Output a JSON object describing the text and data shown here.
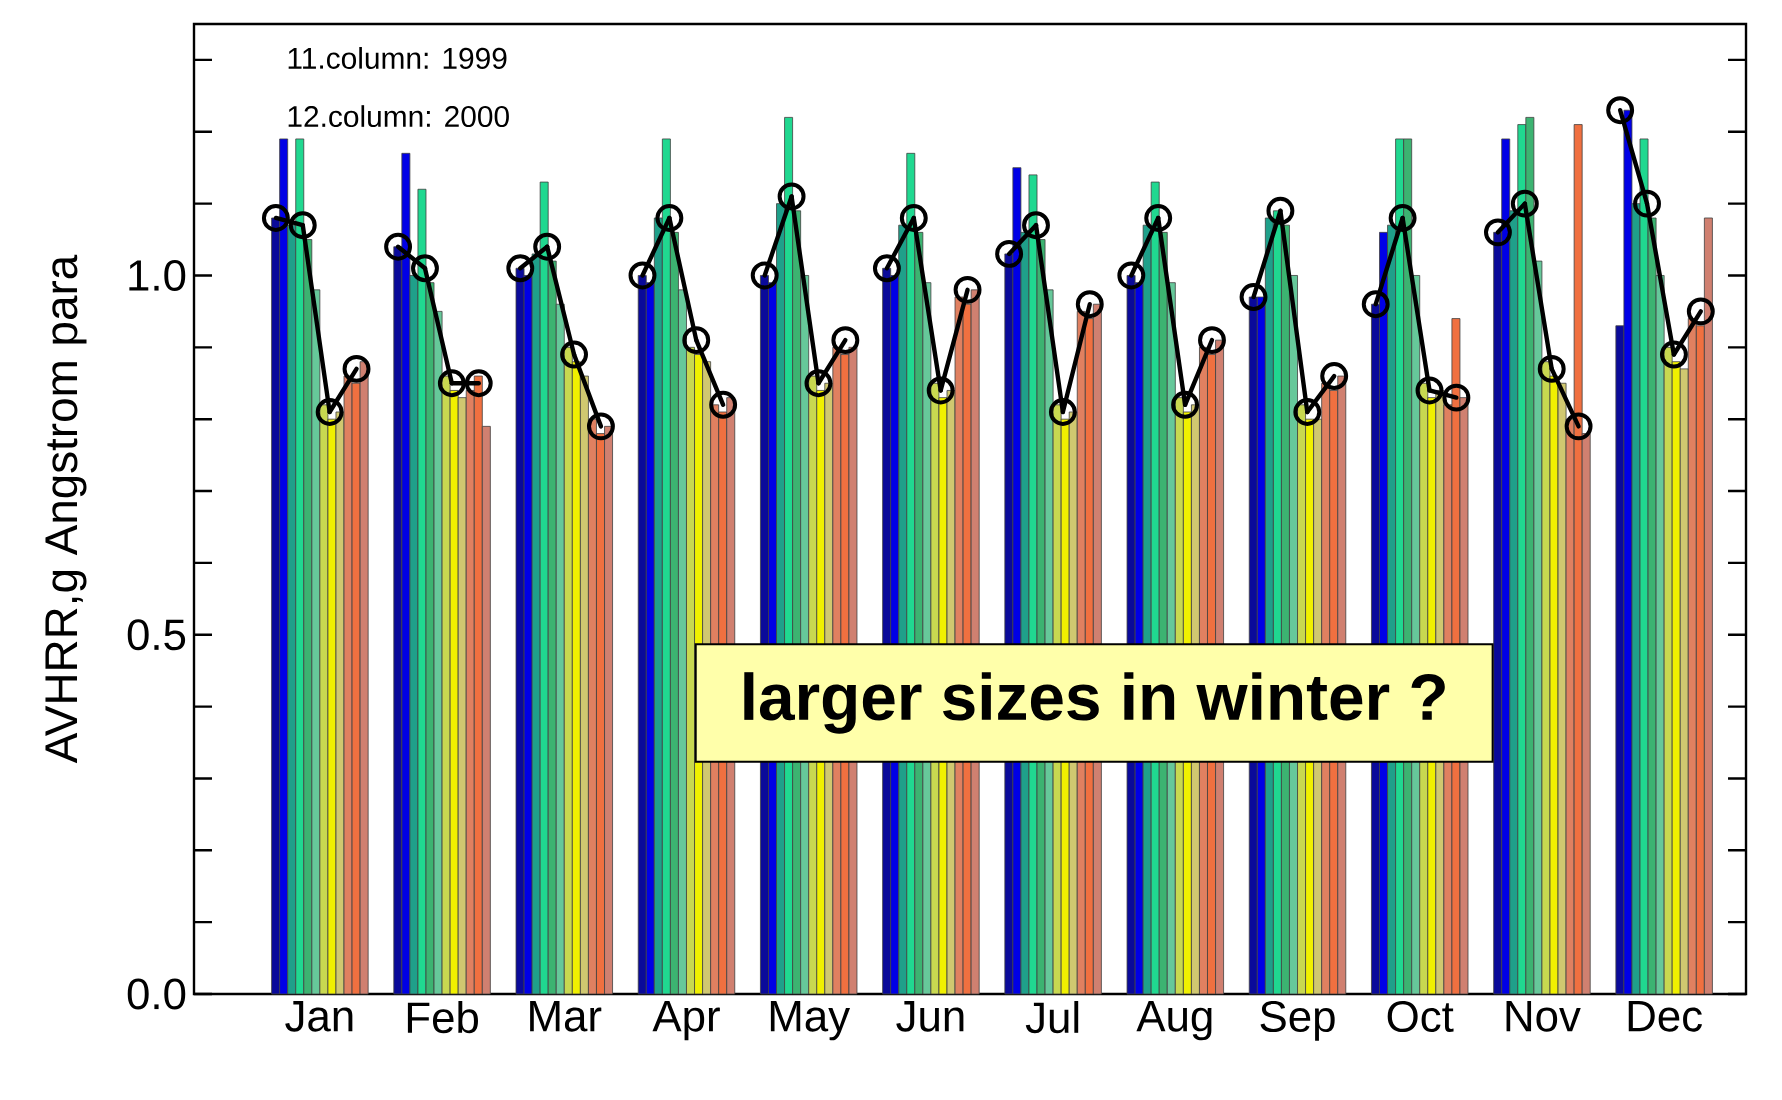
{
  "chart_data": {
    "type": "bar",
    "ylabel": "AVHRR,g  Angstrom para",
    "categories": [
      "Jan",
      "Feb",
      "Mar",
      "Apr",
      "May",
      "Jun",
      "Jul",
      "Aug",
      "Sep",
      "Oct",
      "Nov",
      "Dec"
    ],
    "ylim": [
      0,
      1.35
    ],
    "yticks": [
      {
        "value": 0,
        "label": "0.0"
      },
      {
        "value": 0.1,
        "label": null
      },
      {
        "value": 0.2,
        "label": null
      },
      {
        "value": 0.3,
        "label": null
      },
      {
        "value": 0.4,
        "label": null
      },
      {
        "value": 0.5,
        "label": "0.5"
      },
      {
        "value": 0.6,
        "label": null
      },
      {
        "value": 0.7,
        "label": null
      },
      {
        "value": 0.8,
        "label": null
      },
      {
        "value": 0.9,
        "label": null
      },
      {
        "value": 1.0,
        "label": "1.0"
      },
      {
        "value": 1.1,
        "label": null
      },
      {
        "value": 1.2,
        "label": null
      },
      {
        "value": 1.3,
        "label": null
      }
    ],
    "grid": false,
    "series": [
      {
        "color": "#0a0a9a",
        "values": [
          1.08,
          1.04,
          1.01,
          1.0,
          1.0,
          1.01,
          1.03,
          1.0,
          0.97,
          0.96,
          1.06,
          0.93
        ]
      },
      {
        "color": "#0000e6",
        "values": [
          1.19,
          1.17,
          1.0,
          0.99,
          0.99,
          1.0,
          1.15,
          0.99,
          0.97,
          1.06,
          1.19,
          1.23
        ]
      },
      {
        "color": "#1fa08a",
        "values": [
          1.07,
          1.0,
          1.03,
          1.08,
          1.1,
          1.07,
          1.06,
          1.07,
          1.08,
          1.07,
          1.09,
          1.1
        ]
      },
      {
        "color": "#20d890",
        "values": [
          1.19,
          1.12,
          1.13,
          1.19,
          1.22,
          1.17,
          1.14,
          1.13,
          1.09,
          1.19,
          1.21,
          1.19
        ]
      },
      {
        "color": "#3cb371",
        "values": [
          1.05,
          0.99,
          1.02,
          1.06,
          1.09,
          1.06,
          1.05,
          1.06,
          1.07,
          1.19,
          1.22,
          1.08
        ]
      },
      {
        "color": "#66c89a",
        "values": [
          0.98,
          0.95,
          0.96,
          0.98,
          1.0,
          0.99,
          0.98,
          0.99,
          1.0,
          1.0,
          1.02,
          1.0
        ]
      },
      {
        "color": "#c8d850",
        "values": [
          0.82,
          0.86,
          0.9,
          0.9,
          0.86,
          0.85,
          0.82,
          0.83,
          0.82,
          0.85,
          0.88,
          0.9
        ]
      },
      {
        "color": "#f0f000",
        "values": [
          0.8,
          0.84,
          0.88,
          0.89,
          0.84,
          0.83,
          0.8,
          0.81,
          0.8,
          0.83,
          0.86,
          0.88
        ]
      },
      {
        "color": "#d0c870",
        "values": [
          0.81,
          0.83,
          0.86,
          0.88,
          0.85,
          0.84,
          0.81,
          0.82,
          0.8,
          0.84,
          0.85,
          0.87
        ]
      },
      {
        "color": "#e08060",
        "values": [
          0.86,
          0.84,
          0.8,
          0.82,
          0.9,
          0.97,
          0.95,
          0.9,
          0.85,
          0.82,
          0.8,
          0.94
        ]
      },
      {
        "color": "#f07040",
        "values": [
          0.85,
          0.86,
          0.78,
          0.81,
          0.89,
          0.96,
          0.94,
          0.89,
          0.84,
          0.94,
          1.21,
          0.93
        ]
      },
      {
        "color": "#d08070",
        "values": [
          0.88,
          0.79,
          0.79,
          0.83,
          0.9,
          0.98,
          0.96,
          0.91,
          0.86,
          0.83,
          0.78,
          1.08
        ]
      },
      {
        "type": "scatter",
        "color": "#000000",
        "marker": "circle",
        "line_style": "solid",
        "values": [
          1.08,
          1.04,
          1.01,
          1.0,
          1.0,
          1.01,
          1.03,
          1.0,
          0.97,
          0.96,
          1.06,
          1.23
        ]
      },
      {
        "type": "scatter",
        "color": "#000000",
        "marker": "circle",
        "line_style": "solid",
        "values": [
          1.07,
          1.01,
          1.04,
          1.08,
          1.11,
          1.08,
          1.07,
          1.08,
          1.09,
          1.08,
          1.1,
          1.1
        ]
      },
      {
        "type": "scatter",
        "color": "#000000",
        "marker": "circle",
        "line_style": "solid",
        "values": [
          0.81,
          0.85,
          0.89,
          0.91,
          0.85,
          0.84,
          0.81,
          0.82,
          0.81,
          0.84,
          0.87,
          0.89
        ]
      },
      {
        "type": "scatter",
        "color": "#000000",
        "marker": "circle",
        "line_style": "solid",
        "values": [
          0.87,
          0.85,
          0.79,
          0.82,
          0.91,
          0.98,
          0.96,
          0.91,
          0.86,
          0.83,
          0.79,
          0.95
        ]
      }
    ],
    "annotations": [
      "11.column: 1999",
      "12.column: 2000",
      "larger sizes in winter ?"
    ]
  }
}
